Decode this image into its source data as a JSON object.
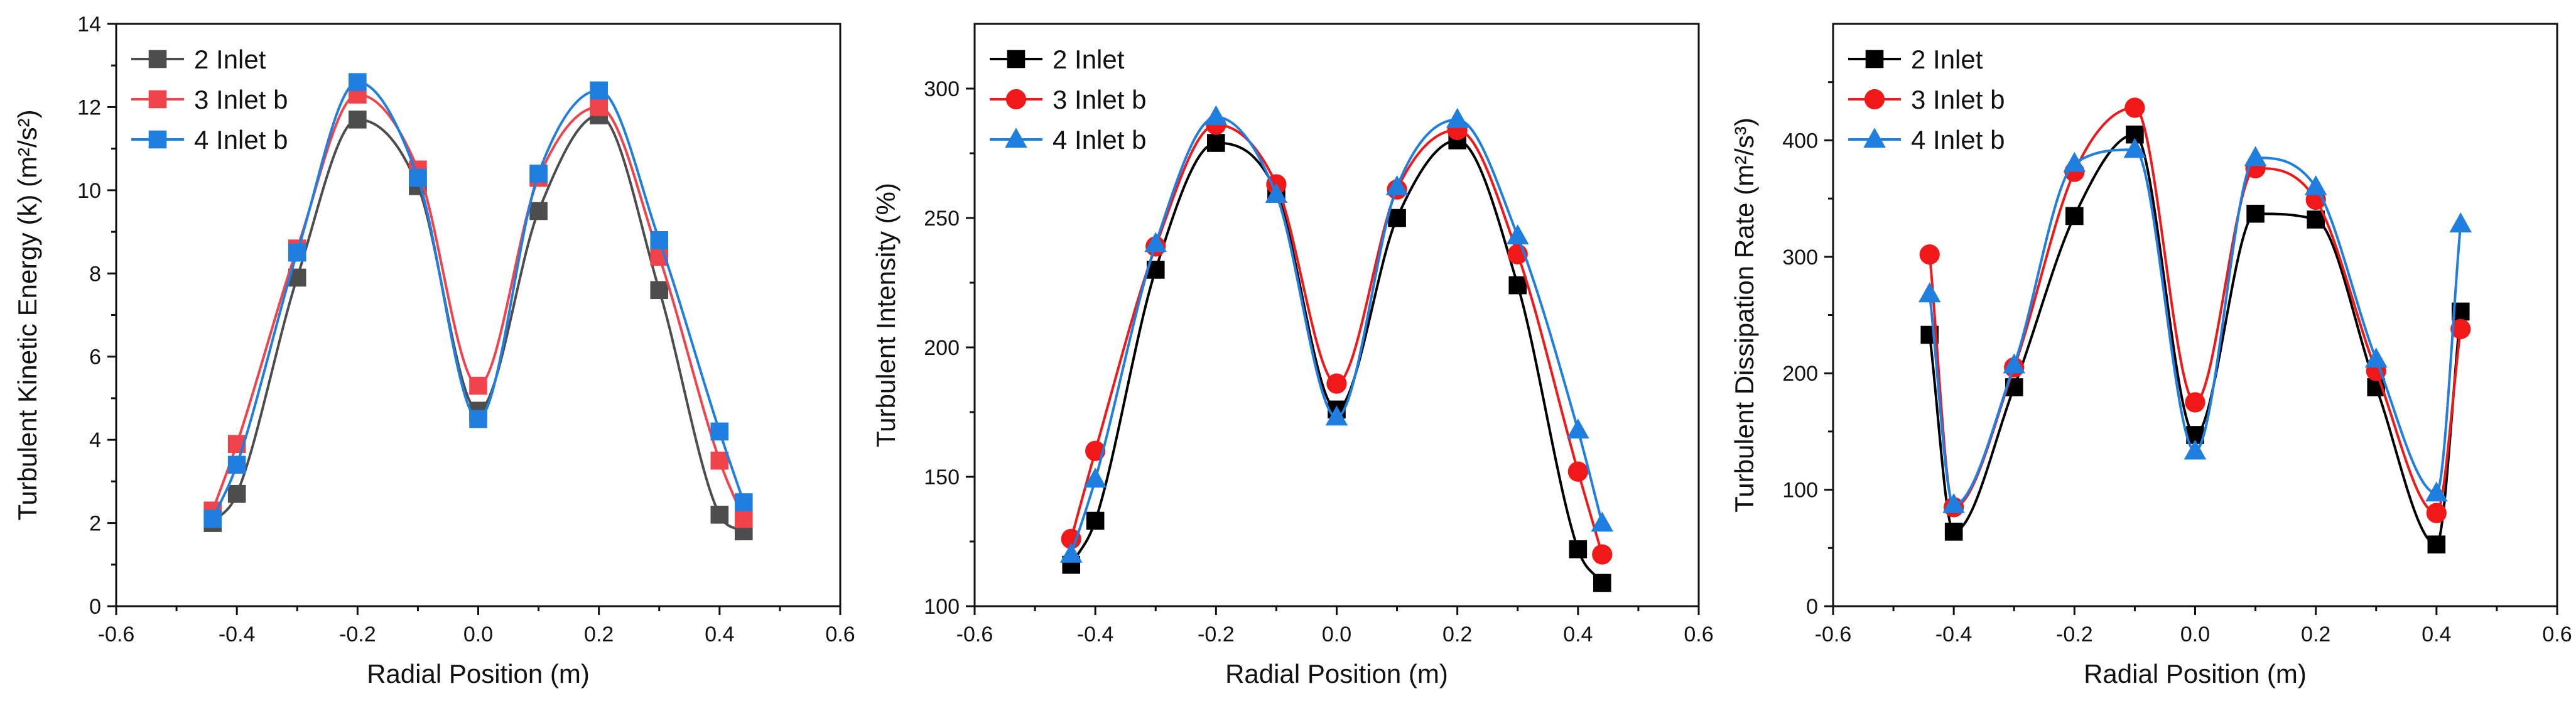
{
  "chart_data": [
    {
      "type": "line",
      "title": "",
      "xlabel": "Radial Position (m)",
      "ylabel": "Turbulent Kinetic Energy (k) (m²/s²)",
      "xlim": [
        -0.6,
        0.6
      ],
      "ylim": [
        0,
        14
      ],
      "xticks": [
        -0.6,
        -0.4,
        -0.2,
        0.0,
        0.2,
        0.4,
        0.6
      ],
      "xtick_labels": [
        "-0.6",
        "-0.4",
        "-0.2",
        "0.0",
        "0.2",
        "0.4",
        "0.6"
      ],
      "yticks": [
        0,
        2,
        4,
        6,
        8,
        10,
        12,
        14
      ],
      "ytick_labels": [
        "0",
        "2",
        "4",
        "6",
        "8",
        "10",
        "12",
        "14"
      ],
      "grid": false,
      "legend": "top-left",
      "x": [
        -0.44,
        -0.4,
        -0.3,
        -0.2,
        -0.1,
        0.0,
        0.1,
        0.2,
        0.3,
        0.4,
        0.44
      ],
      "series": [
        {
          "name": "2 Inlet",
          "color": "#4d4d4d",
          "marker": "square",
          "values": [
            2.0,
            2.7,
            7.9,
            11.7,
            10.1,
            4.7,
            9.5,
            11.8,
            7.6,
            2.2,
            1.8
          ]
        },
        {
          "name": "3 Inlet b",
          "color": "#f0434b",
          "marker": "square",
          "values": [
            2.3,
            3.9,
            8.6,
            12.3,
            10.5,
            5.3,
            10.3,
            12.0,
            8.4,
            3.5,
            2.1
          ]
        },
        {
          "name": "4 Inlet b",
          "color": "#1f7fe0",
          "marker": "square",
          "values": [
            2.1,
            3.4,
            8.5,
            12.6,
            10.3,
            4.5,
            10.4,
            12.4,
            8.8,
            4.2,
            2.5
          ]
        }
      ]
    },
    {
      "type": "line",
      "title": "",
      "xlabel": "Radial Position (m)",
      "ylabel": "Turbulent Intensity (%)",
      "xlim": [
        -0.6,
        0.6
      ],
      "ylim": [
        100,
        325
      ],
      "xticks": [
        -0.6,
        -0.4,
        -0.2,
        0.0,
        0.2,
        0.4,
        0.6
      ],
      "xtick_labels": [
        "-0.6",
        "-0.4",
        "-0.2",
        "0.0",
        "0.2",
        "0.4",
        "0.6"
      ],
      "yticks": [
        100,
        150,
        200,
        250,
        300
      ],
      "ytick_labels": [
        "100",
        "150",
        "200",
        "250",
        "300"
      ],
      "grid": false,
      "legend": "top-left",
      "x": [
        -0.44,
        -0.4,
        -0.3,
        -0.2,
        -0.1,
        0.0,
        0.1,
        0.2,
        0.3,
        0.4,
        0.44
      ],
      "series": [
        {
          "name": "2 Inlet",
          "color": "#000000",
          "marker": "square",
          "values": [
            116,
            133,
            230,
            279,
            260,
            176,
            250,
            280,
            224,
            122,
            109
          ]
        },
        {
          "name": "3 Inlet b",
          "color": "#f01818",
          "marker": "circle",
          "values": [
            126,
            160,
            239,
            286,
            263,
            186,
            261,
            284,
            236,
            152,
            120
          ]
        },
        {
          "name": "4 Inlet b",
          "color": "#1f7fe0",
          "marker": "triangle",
          "values": [
            120,
            149,
            240,
            289,
            259,
            173,
            262,
            288,
            243,
            168,
            132
          ]
        }
      ]
    },
    {
      "type": "line",
      "title": "",
      "xlabel": "Radial Position (m)",
      "ylabel": "Turbulent Dissipation Rate (m²/s³)",
      "xlim": [
        -0.6,
        0.6
      ],
      "ylim": [
        0,
        500
      ],
      "xticks": [
        -0.6,
        -0.4,
        -0.2,
        0.0,
        0.2,
        0.4,
        0.6
      ],
      "xtick_labels": [
        "-0.6",
        "-0.4",
        "-0.2",
        "0.0",
        "0.2",
        "0.4",
        "0.6"
      ],
      "yticks": [
        0,
        100,
        200,
        300,
        400
      ],
      "ytick_labels": [
        "0",
        "100",
        "200",
        "300",
        "400"
      ],
      "grid": false,
      "legend": "top-left",
      "x": [
        -0.44,
        -0.4,
        -0.3,
        -0.2,
        -0.1,
        0.0,
        0.1,
        0.2,
        0.3,
        0.4,
        0.44
      ],
      "series": [
        {
          "name": "2 Inlet",
          "color": "#000000",
          "marker": "square",
          "values": [
            233,
            64,
            188,
            335,
            405,
            147,
            337,
            332,
            188,
            53,
            253
          ]
        },
        {
          "name": "3 Inlet b",
          "color": "#f01818",
          "marker": "circle",
          "values": [
            302,
            85,
            205,
            373,
            428,
            175,
            376,
            349,
            202,
            80,
            238
          ]
        },
        {
          "name": "4 Inlet b",
          "color": "#1f7fe0",
          "marker": "triangle",
          "values": [
            268,
            87,
            207,
            380,
            392,
            133,
            385,
            360,
            212,
            97,
            328
          ]
        }
      ]
    }
  ]
}
